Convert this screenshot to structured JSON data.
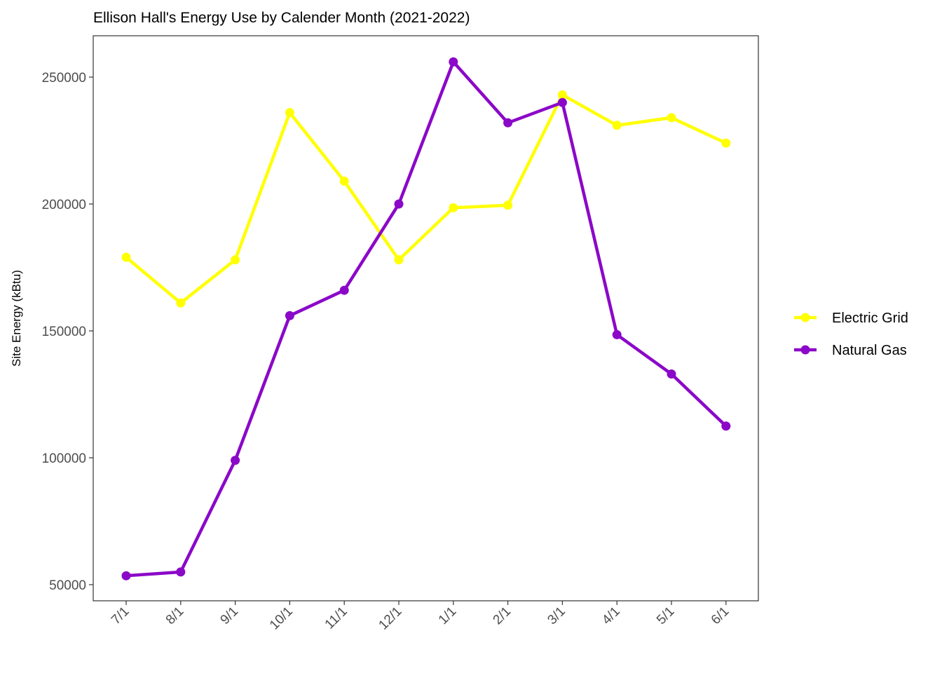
{
  "chart_data": {
    "type": "line",
    "title": "Ellison Hall's Energy Use by Calender Month (2021-2022)",
    "xlabel": "",
    "ylabel": "Site Energy (kBtu)",
    "categories": [
      "7/1",
      "8/1",
      "9/1",
      "10/1",
      "11/1",
      "12/1",
      "1/1",
      "2/1",
      "3/1",
      "4/1",
      "5/1",
      "6/1"
    ],
    "ylim": [
      45000,
      266000
    ],
    "yticks": [
      50000,
      100000,
      150000,
      200000,
      250000
    ],
    "ytick_labels": [
      "50000",
      "100000",
      "150000",
      "200000",
      "250000"
    ],
    "grid": false,
    "legend_position": "right",
    "series": [
      {
        "name": "Electric Grid",
        "color": "#FFFF00",
        "values": [
          179000,
          161000,
          178000,
          236000,
          209000,
          178000,
          198500,
          199500,
          243000,
          231000,
          234000,
          224000
        ]
      },
      {
        "name": "Natural Gas",
        "color": "#8B08C8",
        "values": [
          53500,
          55000,
          99000,
          156000,
          166000,
          200000,
          256000,
          232000,
          240000,
          148500,
          133000,
          112500
        ]
      }
    ]
  }
}
